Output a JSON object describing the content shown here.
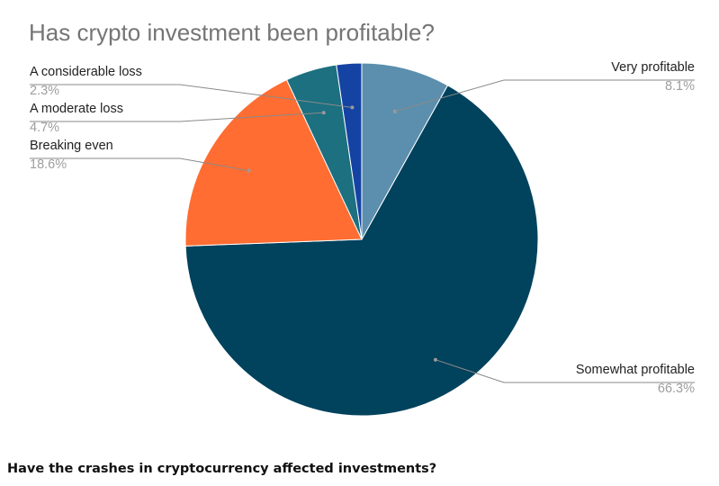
{
  "chart_data": {
    "type": "pie",
    "title": "Has crypto investment been profitable?",
    "slices": [
      {
        "label": "Very profitable",
        "value": 8.1,
        "display": "8.1%",
        "color": "#5b8fad"
      },
      {
        "label": "Somewhat profitable",
        "value": 66.3,
        "display": "66.3%",
        "color": "#01425d"
      },
      {
        "label": "Breaking even",
        "value": 18.6,
        "display": "18.6%",
        "color": "#ff6d32"
      },
      {
        "label": "A moderate loss",
        "value": 4.7,
        "display": "4.7%",
        "color": "#1c7080"
      },
      {
        "label": "A considerable loss",
        "value": 2.3,
        "display": "2.3%",
        "color": "#1443a3"
      }
    ]
  },
  "page": {
    "question": "Have the crashes in cryptocurrency affected investments?"
  }
}
